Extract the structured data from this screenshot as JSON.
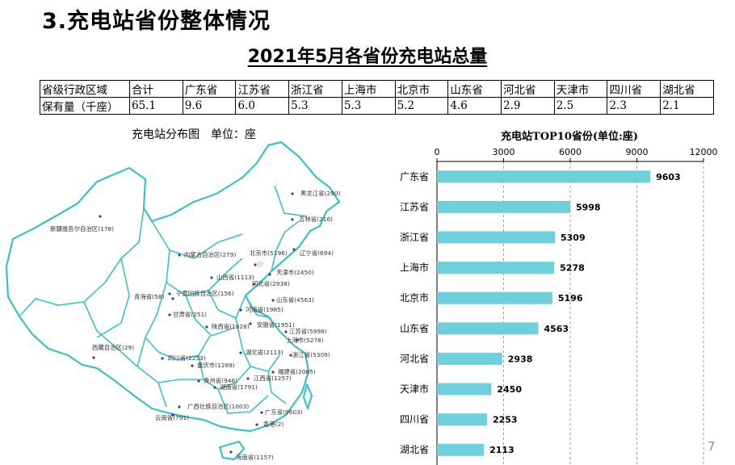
{
  "slide_title": "3.充电站省份整体情况",
  "main_title": "2021年5月各省份充电站总量",
  "summary_table": {
    "header": [
      "省级行政区域",
      "合计",
      "广东省",
      "江苏省",
      "浙江省",
      "上海市",
      "北京市",
      "山东省",
      "河北省",
      "天津市",
      "四川省",
      "湖北省"
    ],
    "row": [
      "保有量（千座）",
      "65.1",
      "9.6",
      "6.0",
      "5.3",
      "5.3",
      "5.2",
      "4.6",
      "2.9",
      "2.5",
      "2.3",
      "2.1"
    ]
  },
  "map": {
    "title": "充电站分布图　单位：座",
    "labels": [
      {
        "text": "黑龙江省(290)"
      },
      {
        "text": "吉林省(216)"
      },
      {
        "text": "新疆维吾尔自治区(178)"
      },
      {
        "text": "内蒙古自治区(279)"
      },
      {
        "text": "北京市(5196)"
      },
      {
        "text": "辽宁省(694)"
      },
      {
        "text": "天津市(2450)"
      },
      {
        "text": "山西省(1113)"
      },
      {
        "text": "河北省(2938)"
      },
      {
        "text": "宁夏回族自治区(156)"
      },
      {
        "text": "青海省(58)"
      },
      {
        "text": "山东省(4563)"
      },
      {
        "text": "河南省(1985)"
      },
      {
        "text": "甘肃省(251)"
      },
      {
        "text": "陕西省(1828)"
      },
      {
        "text": "安徽省(1951)"
      },
      {
        "text": "江苏省(5998)"
      },
      {
        "text": "上海市(5278)"
      },
      {
        "text": "西藏自治区(29)"
      },
      {
        "text": "湖北省(2113)"
      },
      {
        "text": "浙江省(5309)"
      },
      {
        "text": "四川省(2253)"
      },
      {
        "text": "重庆市(1289)"
      },
      {
        "text": "福建省(2065)"
      },
      {
        "text": "江西省(1257)"
      },
      {
        "text": "贵州省(946)"
      },
      {
        "text": "湖南省(1791)"
      },
      {
        "text": "广西壮族自治区(1003)"
      },
      {
        "text": "广东省(9603)"
      },
      {
        "text": "云南省(791)"
      },
      {
        "text": "香港(2)"
      },
      {
        "text": "海南省(1157)"
      }
    ],
    "colors": {
      "outline": "#3cc0c8",
      "dot": "#3a3aa8",
      "capital": "#e05050"
    }
  },
  "chart_data": {
    "type": "bar",
    "orientation": "horizontal",
    "title": "充电站TOP10省份(单位:座)",
    "categories": [
      "广东省",
      "江苏省",
      "浙江省",
      "上海市",
      "北京市",
      "山东省",
      "河北省",
      "天津市",
      "四川省",
      "湖北省"
    ],
    "values": [
      9603,
      5998,
      5309,
      5278,
      5196,
      4563,
      2938,
      2450,
      2253,
      2113
    ],
    "xlim": [
      0,
      12000
    ],
    "xticks": [
      "0",
      "3000",
      "6000",
      "9000",
      "12000"
    ],
    "x_axis_position": "top",
    "grid": true,
    "bar_color": "#6dd0dc"
  },
  "page_number": "7"
}
